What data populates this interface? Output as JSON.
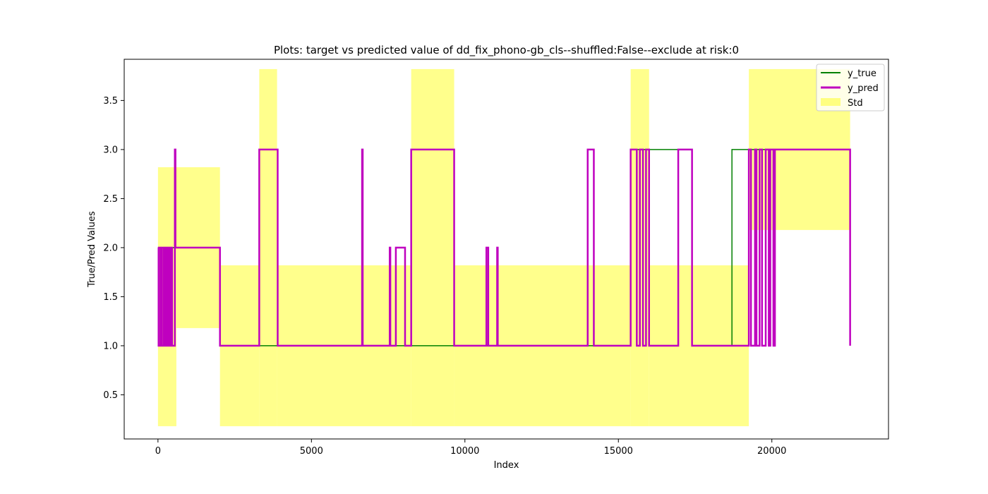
{
  "chart_data": {
    "type": "line",
    "title": "Plots: target vs predicted value of dd_fix_phono-gb_cls--shuffled:False--exclude at risk:0",
    "xlabel": "Index",
    "ylabel": "True/Pred Values",
    "xlim": [
      -1100,
      23800
    ],
    "ylim": [
      0.05,
      3.92
    ],
    "xticks": [
      0,
      5000,
      10000,
      15000,
      20000
    ],
    "yticks": [
      0.5,
      1.0,
      1.5,
      2.0,
      2.5,
      3.0,
      3.5
    ],
    "xtick_labels": [
      "0",
      "5000",
      "10000",
      "15000",
      "20000"
    ],
    "ytick_labels": [
      "0.5",
      "1.0",
      "1.5",
      "2.0",
      "2.5",
      "3.0",
      "3.5"
    ],
    "legend_position": "top-right",
    "grid": false,
    "series": [
      {
        "name": "y_true",
        "color": "#008000",
        "points": [
          [
            0,
            2.0
          ],
          [
            600,
            2.0
          ],
          [
            2020,
            2.0
          ],
          [
            2020,
            1.0
          ],
          [
            15400,
            1.0
          ],
          [
            15400,
            3.0
          ],
          [
            17400,
            3.0
          ],
          [
            17400,
            1.0
          ],
          [
            18700,
            1.0
          ],
          [
            18700,
            3.0
          ],
          [
            22550,
            3.0
          ]
        ]
      },
      {
        "name": "y_pred",
        "color": "#bf00bf",
        "points": [
          [
            0,
            2.0
          ],
          [
            20,
            2.0
          ],
          [
            20,
            1.0
          ],
          [
            80,
            1.0
          ],
          [
            80,
            2.0
          ],
          [
            120,
            2.0
          ],
          [
            120,
            1.0
          ],
          [
            180,
            1.0
          ],
          [
            180,
            2.0
          ],
          [
            220,
            2.0
          ],
          [
            220,
            1.0
          ],
          [
            260,
            1.0
          ],
          [
            260,
            2.0
          ],
          [
            300,
            2.0
          ],
          [
            300,
            1.0
          ],
          [
            340,
            1.0
          ],
          [
            340,
            2.0
          ],
          [
            380,
            2.0
          ],
          [
            380,
            1.0
          ],
          [
            420,
            1.0
          ],
          [
            420,
            2.0
          ],
          [
            460,
            2.0
          ],
          [
            460,
            1.0
          ],
          [
            550,
            1.0
          ],
          [
            550,
            3.0
          ],
          [
            570,
            3.0
          ],
          [
            570,
            2.0
          ],
          [
            2020,
            2.0
          ],
          [
            2020,
            1.0
          ],
          [
            3300,
            1.0
          ],
          [
            3300,
            3.0
          ],
          [
            3900,
            3.0
          ],
          [
            3900,
            1.0
          ],
          [
            6650,
            1.0
          ],
          [
            6650,
            3.0
          ],
          [
            6670,
            3.0
          ],
          [
            6670,
            1.0
          ],
          [
            7550,
            1.0
          ],
          [
            7550,
            2.0
          ],
          [
            7570,
            2.0
          ],
          [
            7570,
            1.0
          ],
          [
            7750,
            1.0
          ],
          [
            7750,
            2.0
          ],
          [
            8050,
            2.0
          ],
          [
            8050,
            1.0
          ],
          [
            8250,
            1.0
          ],
          [
            8250,
            3.0
          ],
          [
            9650,
            3.0
          ],
          [
            9650,
            1.0
          ],
          [
            10700,
            1.0
          ],
          [
            10700,
            2.0
          ],
          [
            10760,
            2.0
          ],
          [
            10760,
            1.0
          ],
          [
            11050,
            1.0
          ],
          [
            11050,
            2.0
          ],
          [
            11070,
            2.0
          ],
          [
            11070,
            1.0
          ],
          [
            14000,
            1.0
          ],
          [
            14000,
            3.0
          ],
          [
            14200,
            3.0
          ],
          [
            14200,
            1.0
          ],
          [
            15400,
            1.0
          ],
          [
            15400,
            3.0
          ],
          [
            15600,
            3.0
          ],
          [
            15600,
            1.0
          ],
          [
            15700,
            1.0
          ],
          [
            15700,
            3.0
          ],
          [
            15800,
            3.0
          ],
          [
            15800,
            1.0
          ],
          [
            15900,
            1.0
          ],
          [
            15900,
            3.0
          ],
          [
            16000,
            3.0
          ],
          [
            16000,
            1.0
          ],
          [
            16950,
            1.0
          ],
          [
            16950,
            3.0
          ],
          [
            17400,
            3.0
          ],
          [
            17400,
            1.0
          ],
          [
            19250,
            1.0
          ],
          [
            19250,
            3.0
          ],
          [
            19320,
            3.0
          ],
          [
            19320,
            1.0
          ],
          [
            19450,
            1.0
          ],
          [
            19450,
            3.0
          ],
          [
            19500,
            3.0
          ],
          [
            19500,
            1.0
          ],
          [
            19600,
            1.0
          ],
          [
            19600,
            3.0
          ],
          [
            19680,
            3.0
          ],
          [
            19680,
            1.0
          ],
          [
            19800,
            1.0
          ],
          [
            19800,
            3.0
          ],
          [
            19900,
            3.0
          ],
          [
            19900,
            1.0
          ],
          [
            19950,
            1.0
          ],
          [
            19950,
            3.0
          ],
          [
            20050,
            3.0
          ],
          [
            20050,
            1.0
          ],
          [
            20100,
            1.0
          ],
          [
            20100,
            3.0
          ],
          [
            22550,
            3.0
          ],
          [
            22550,
            1.0
          ]
        ]
      }
    ],
    "std_band": {
      "name": "Std",
      "color": "#ffff80",
      "segments": [
        {
          "x0": 0,
          "x1": 600,
          "low": 0.18,
          "high": 2.82
        },
        {
          "x0": 600,
          "x1": 2020,
          "low": 1.18,
          "high": 2.82
        },
        {
          "x0": 2020,
          "x1": 3300,
          "low": 0.18,
          "high": 1.82
        },
        {
          "x0": 3300,
          "x1": 3880,
          "low": 0.18,
          "high": 3.82
        },
        {
          "x0": 3880,
          "x1": 8250,
          "low": 0.18,
          "high": 1.82
        },
        {
          "x0": 8250,
          "x1": 9650,
          "low": 0.18,
          "high": 3.82
        },
        {
          "x0": 9650,
          "x1": 15400,
          "low": 0.18,
          "high": 1.82
        },
        {
          "x0": 15400,
          "x1": 16000,
          "low": 0.18,
          "high": 3.82
        },
        {
          "x0": 16000,
          "x1": 19250,
          "low": 0.18,
          "high": 1.82
        },
        {
          "x0": 19250,
          "x1": 22550,
          "low": 2.18,
          "high": 3.82
        }
      ]
    }
  }
}
